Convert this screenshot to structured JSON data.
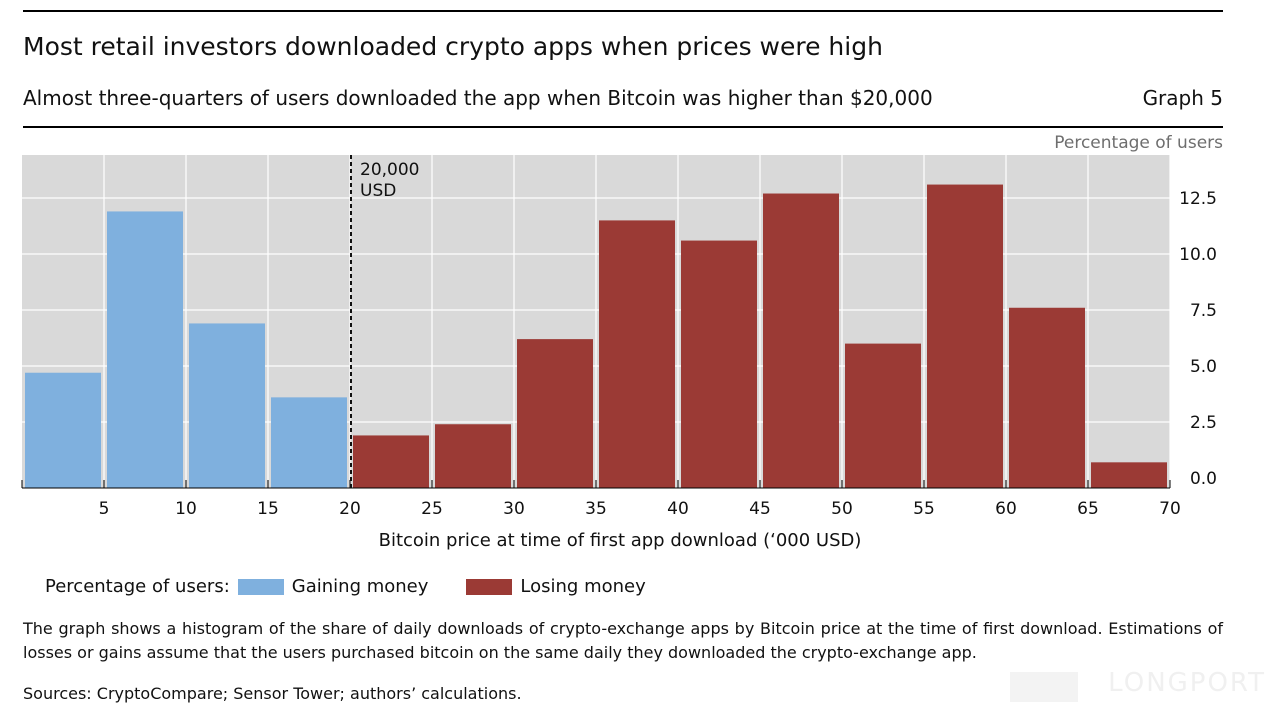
{
  "header": {
    "title": "Most retail investors downloaded crypto apps when prices were high",
    "subtitle": "Almost three-quarters of users downloaded the app when Bitcoin was higher than $20,000",
    "graph_number": "Graph 5",
    "unit_label": "Percentage of users"
  },
  "chart_data": {
    "type": "bar",
    "title": "Most retail investors downloaded crypto apps when prices were high",
    "xlabel": "Bitcoin price at time of first app download (‘000 USD)",
    "ylabel": "Percentage of users",
    "ylim": [
      0,
      15
    ],
    "yticks": [
      "0.0",
      "2.5",
      "5.0",
      "7.5",
      "10.0",
      "12.5"
    ],
    "ytick_values": [
      0,
      2.5,
      5,
      7.5,
      10,
      12.5
    ],
    "xticks": [
      "5",
      "10",
      "15",
      "20",
      "25",
      "30",
      "35",
      "40",
      "45",
      "50",
      "55",
      "60",
      "65",
      "70"
    ],
    "xtick_values": [
      5,
      10,
      15,
      20,
      25,
      30,
      35,
      40,
      45,
      50,
      55,
      60,
      65,
      70
    ],
    "xlim": [
      0,
      70
    ],
    "bin_width": 5,
    "bins": [
      {
        "from": 0,
        "to": 5,
        "value": 4.7,
        "series": "gain"
      },
      {
        "from": 5,
        "to": 10,
        "value": 11.9,
        "series": "gain"
      },
      {
        "from": 10,
        "to": 15,
        "value": 6.9,
        "series": "gain"
      },
      {
        "from": 15,
        "to": 20,
        "value": 3.6,
        "series": "gain"
      },
      {
        "from": 20,
        "to": 25,
        "value": 1.9,
        "series": "loss"
      },
      {
        "from": 25,
        "to": 30,
        "value": 2.4,
        "series": "loss"
      },
      {
        "from": 30,
        "to": 35,
        "value": 6.2,
        "series": "loss"
      },
      {
        "from": 35,
        "to": 40,
        "value": 11.5,
        "series": "loss"
      },
      {
        "from": 40,
        "to": 45,
        "value": 10.6,
        "series": "loss"
      },
      {
        "from": 45,
        "to": 50,
        "value": 12.7,
        "series": "loss"
      },
      {
        "from": 50,
        "to": 55,
        "value": 6.0,
        "series": "loss"
      },
      {
        "from": 55,
        "to": 60,
        "value": 13.1,
        "series": "loss"
      },
      {
        "from": 60,
        "to": 65,
        "value": 7.6,
        "series": "loss"
      },
      {
        "from": 65,
        "to": 70,
        "value": 0.7,
        "series": "loss"
      }
    ],
    "series": [
      {
        "key": "gain",
        "name": "Gaining money",
        "color": "#7fb0de"
      },
      {
        "key": "loss",
        "name": "Losing money",
        "color": "#9b3a35"
      }
    ],
    "reference_line": {
      "x": 20,
      "label_line1": "20,000",
      "label_line2": "USD"
    },
    "background_color": "#d9d9d9",
    "grid": true
  },
  "legend": {
    "prefix": "Percentage of users:",
    "gain_label": "Gaining money",
    "loss_label": "Losing money",
    "gain_color": "#7fb0de",
    "loss_color": "#9b3a35"
  },
  "footer": {
    "note": "The graph shows a histogram of the share of daily downloads of crypto-exchange apps by Bitcoin price at the time of first download. Estimations of losses or gains assume that the users purchased bitcoin on the same daily they downloaded the crypto-exchange app.",
    "sources": "Sources: CryptoCompare; Sensor Tower; authors’ calculations."
  },
  "watermark": {
    "text": "LONGPORT"
  }
}
